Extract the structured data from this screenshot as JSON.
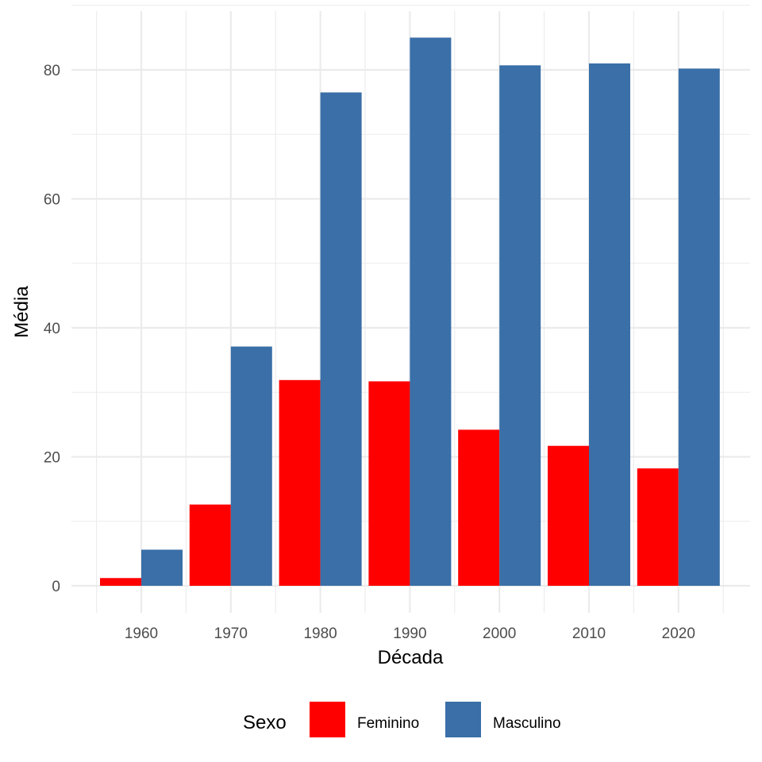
{
  "chart_data": {
    "type": "bar",
    "xlabel": "Década",
    "ylabel": "Média",
    "ylim": [
      0,
      86
    ],
    "y_ticks": [
      0,
      20,
      40,
      60,
      80
    ],
    "categories": [
      "1960",
      "1970",
      "1980",
      "1990",
      "2000",
      "2010",
      "2020"
    ],
    "series": [
      {
        "name": "Feminino",
        "color": "#FF0000",
        "values": [
          1.2,
          12.6,
          31.9,
          31.7,
          24.2,
          21.7,
          18.2
        ]
      },
      {
        "name": "Masculino",
        "color": "#3A6FA8",
        "values": [
          5.6,
          37.1,
          76.5,
          85.0,
          80.7,
          81.0,
          80.2
        ]
      }
    ],
    "legend": {
      "title": "Sexo",
      "position": "bottom"
    },
    "grid": true
  }
}
